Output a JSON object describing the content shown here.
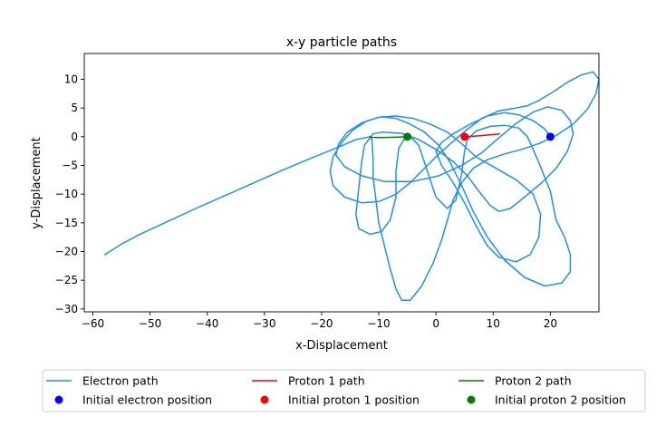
{
  "chart_data": {
    "type": "line",
    "title": "x-y particle paths",
    "xlabel": "x-Displacement",
    "ylabel": "y-Displacement",
    "xlim": [
      -61.5,
      28.5
    ],
    "ylim": [
      -30.5,
      14.5
    ],
    "xticks": [
      -60,
      -50,
      -40,
      -30,
      -20,
      -10,
      0,
      10,
      20
    ],
    "xtick_labels": [
      "−60",
      "−50",
      "−40",
      "−30",
      "−20",
      "−10",
      "0",
      "10",
      "20"
    ],
    "yticks": [
      10,
      5,
      0,
      -5,
      -10,
      -15,
      -20,
      -25,
      -30
    ],
    "ytick_labels": [
      "10",
      "5",
      "0",
      "−5",
      "−10",
      "−15",
      "−20",
      "−25",
      "−30"
    ],
    "grid": false,
    "legend_position": "below-plot",
    "series": [
      {
        "name": "Electron path",
        "color": "#1f8fef",
        "kind": "line",
        "points": [
          [
            20,
            0
          ],
          [
            19,
            1.4
          ],
          [
            17,
            2.8
          ],
          [
            14.5,
            3.8
          ],
          [
            12,
            4.2
          ],
          [
            9,
            3.6
          ],
          [
            6,
            2.2
          ],
          [
            3,
            0.5
          ],
          [
            1,
            -1
          ],
          [
            0,
            -2.5
          ],
          [
            1,
            -5
          ],
          [
            3,
            -8
          ],
          [
            5,
            -11.5
          ],
          [
            7,
            -15.5
          ],
          [
            9,
            -19
          ],
          [
            11,
            -21
          ],
          [
            14,
            -21.8
          ],
          [
            16.5,
            -20.5
          ],
          [
            18,
            -17.5
          ],
          [
            18.3,
            -13.5
          ],
          [
            17,
            -10
          ],
          [
            14,
            -7.5
          ],
          [
            10.5,
            -5.5
          ],
          [
            7,
            -3.5
          ],
          [
            4.5,
            -1.2
          ],
          [
            2,
            0.8
          ],
          [
            -1,
            2.2
          ],
          [
            -4,
            3.2
          ],
          [
            -7,
            3.6
          ],
          [
            -10,
            3.4
          ],
          [
            -13,
            2.4
          ],
          [
            -15.5,
            0.8
          ],
          [
            -17,
            -1.2
          ],
          [
            -17.5,
            -3.2
          ],
          [
            -16,
            -5.2
          ],
          [
            -13,
            -6.8
          ],
          [
            -9,
            -7.8
          ],
          [
            -4,
            -7.8
          ],
          [
            0.5,
            -6.8
          ],
          [
            4.5,
            -5
          ],
          [
            8,
            -2.8
          ],
          [
            11,
            -0.2
          ],
          [
            14,
            2.3
          ],
          [
            17,
            4.3
          ],
          [
            19.5,
            5.2
          ],
          [
            22,
            4.6
          ],
          [
            23.5,
            2.8
          ],
          [
            24,
            0.5
          ],
          [
            23,
            -2.5
          ],
          [
            21,
            -5.5
          ],
          [
            18.5,
            -8
          ],
          [
            15.5,
            -10.5
          ],
          [
            13,
            -12.5
          ],
          [
            11,
            -13
          ],
          [
            9.5,
            -12
          ],
          [
            7.5,
            -9.5
          ],
          [
            5.5,
            -6.8
          ],
          [
            3,
            -4.3
          ],
          [
            0,
            -2.2
          ],
          [
            -3,
            -0.5
          ],
          [
            -6,
            0.6
          ],
          [
            -9.5,
            0.8
          ],
          [
            -11,
            0.5
          ],
          [
            -12.5,
            -1.5
          ],
          [
            -13,
            -4.5
          ],
          [
            -13.5,
            -9
          ],
          [
            -14,
            -13.5
          ],
          [
            -13.5,
            -16
          ],
          [
            -11.5,
            -17
          ],
          [
            -9.5,
            -16.5
          ],
          [
            -8,
            -14.5
          ],
          [
            -7,
            -10.5
          ],
          [
            -7,
            -6
          ],
          [
            -6.5,
            -2
          ],
          [
            -5,
            0.5
          ],
          [
            -3,
            -1.5
          ],
          [
            -2,
            -4.5
          ],
          [
            -1,
            -7.5
          ],
          [
            0,
            -10.5
          ],
          [
            2,
            -12.5
          ],
          [
            3.5,
            -11
          ],
          [
            4.5,
            -6.5
          ],
          [
            5,
            -2.5
          ],
          [
            5.5,
            -0.5
          ],
          [
            7,
            1
          ],
          [
            9.5,
            1.8
          ],
          [
            12,
            2
          ],
          [
            14.5,
            1.5
          ],
          [
            16,
            0
          ],
          [
            17,
            -2.2
          ],
          [
            18,
            -4.5
          ],
          [
            19,
            -7
          ],
          [
            20,
            -9.5
          ],
          [
            20.5,
            -12
          ],
          [
            21,
            -14.5
          ],
          [
            22.5,
            -17.5
          ],
          [
            23.5,
            -20.5
          ],
          [
            23.5,
            -23.5
          ],
          [
            22,
            -25.5
          ],
          [
            19,
            -26
          ],
          [
            15.5,
            -24.5
          ],
          [
            12,
            -21.5
          ],
          [
            9,
            -17.5
          ],
          [
            6.5,
            -13
          ],
          [
            4.5,
            -8.5
          ],
          [
            2.5,
            -4.5
          ],
          [
            0.5,
            -1.5
          ],
          [
            -2,
            0.8
          ],
          [
            -4.5,
            2.2
          ],
          [
            -7,
            3.2
          ],
          [
            -9.5,
            3.5
          ],
          [
            -12,
            2.8
          ],
          [
            -14.5,
            1.2
          ],
          [
            -16.5,
            -1
          ],
          [
            -18,
            -3.5
          ],
          [
            -18.5,
            -6
          ],
          [
            -18,
            -8.5
          ],
          [
            -16,
            -10.5
          ],
          [
            -13,
            -11.5
          ],
          [
            -10,
            -11.3
          ],
          [
            -7,
            -10
          ],
          [
            -4.5,
            -8
          ],
          [
            -2,
            -5.5
          ],
          [
            0.5,
            -3
          ],
          [
            3,
            -0.8
          ],
          [
            5.5,
            1.3
          ],
          [
            8,
            3.2
          ],
          [
            11,
            4.5
          ],
          [
            14,
            5
          ],
          [
            16,
            5.4
          ],
          [
            18,
            6.3
          ],
          [
            20.5,
            7.8
          ],
          [
            23,
            9.5
          ],
          [
            25.5,
            10.8
          ],
          [
            27.5,
            11.3
          ],
          [
            28.5,
            10
          ],
          [
            28,
            7.5
          ],
          [
            26.5,
            4.8
          ],
          [
            24,
            2.2
          ],
          [
            21,
            0.2
          ],
          [
            18,
            -1.2
          ],
          [
            15,
            -2.2
          ],
          [
            12,
            -3
          ],
          [
            9,
            -4
          ],
          [
            6.5,
            -5.5
          ],
          [
            4.5,
            -8
          ],
          [
            3,
            -11
          ],
          [
            2,
            -14.5
          ],
          [
            1,
            -18
          ],
          [
            -0.5,
            -22
          ],
          [
            -2.5,
            -26
          ],
          [
            -4.5,
            -28.5
          ],
          [
            -6,
            -28.5
          ],
          [
            -7,
            -26.5
          ],
          [
            -8,
            -23
          ],
          [
            -9,
            -19
          ],
          [
            -10,
            -15
          ],
          [
            -10.5,
            -11
          ],
          [
            -11,
            -7
          ],
          [
            -11,
            -3.5
          ],
          [
            -11.2,
            -0.5
          ],
          [
            -11.5,
            0
          ],
          [
            -14,
            -0.5
          ],
          [
            -17,
            -1.8
          ],
          [
            -22,
            -3.8
          ],
          [
            -27,
            -5.9
          ],
          [
            -32,
            -8.1
          ],
          [
            -37,
            -10.3
          ],
          [
            -42,
            -12.5
          ],
          [
            -47,
            -14.8
          ],
          [
            -52,
            -17.1
          ],
          [
            -55,
            -18.7
          ],
          [
            -58,
            -20.6
          ]
        ]
      },
      {
        "name": "Proton 1 path",
        "color": "#ff0000",
        "kind": "line",
        "points": [
          [
            5,
            0
          ],
          [
            6.5,
            0.1
          ],
          [
            8,
            0.2
          ],
          [
            9.5,
            0.35
          ],
          [
            11.2,
            0.5
          ]
        ]
      },
      {
        "name": "Proton 2 path",
        "color": "#008000",
        "kind": "line",
        "points": [
          [
            -5,
            0
          ],
          [
            -6.5,
            -0.05
          ],
          [
            -8,
            -0.1
          ],
          [
            -9.5,
            -0.15
          ],
          [
            -11.3,
            -0.1
          ],
          [
            -11.6,
            0.1
          ]
        ]
      },
      {
        "name": "Initial electron position",
        "color": "#0000ff",
        "kind": "marker",
        "points": [
          [
            20,
            0
          ]
        ]
      },
      {
        "name": "Initial proton 1 position",
        "color": "#ff0000",
        "kind": "marker",
        "points": [
          [
            5,
            0
          ]
        ]
      },
      {
        "name": "Initial proton 2 position",
        "color": "#008000",
        "kind": "marker",
        "points": [
          [
            -5,
            0
          ]
        ]
      }
    ],
    "legend": [
      {
        "label": "Electron path",
        "kind": "line",
        "color": "#1f8fef"
      },
      {
        "label": "Proton 1 path",
        "kind": "line",
        "color": "#ff0000"
      },
      {
        "label": "Proton 2 path",
        "kind": "line",
        "color": "#008000"
      },
      {
        "label": "Initial electron position",
        "kind": "marker",
        "color": "#0000ff"
      },
      {
        "label": "Initial proton 1 position",
        "kind": "marker",
        "color": "#ff0000"
      },
      {
        "label": "Initial proton 2 position",
        "kind": "marker",
        "color": "#008000"
      }
    ]
  }
}
